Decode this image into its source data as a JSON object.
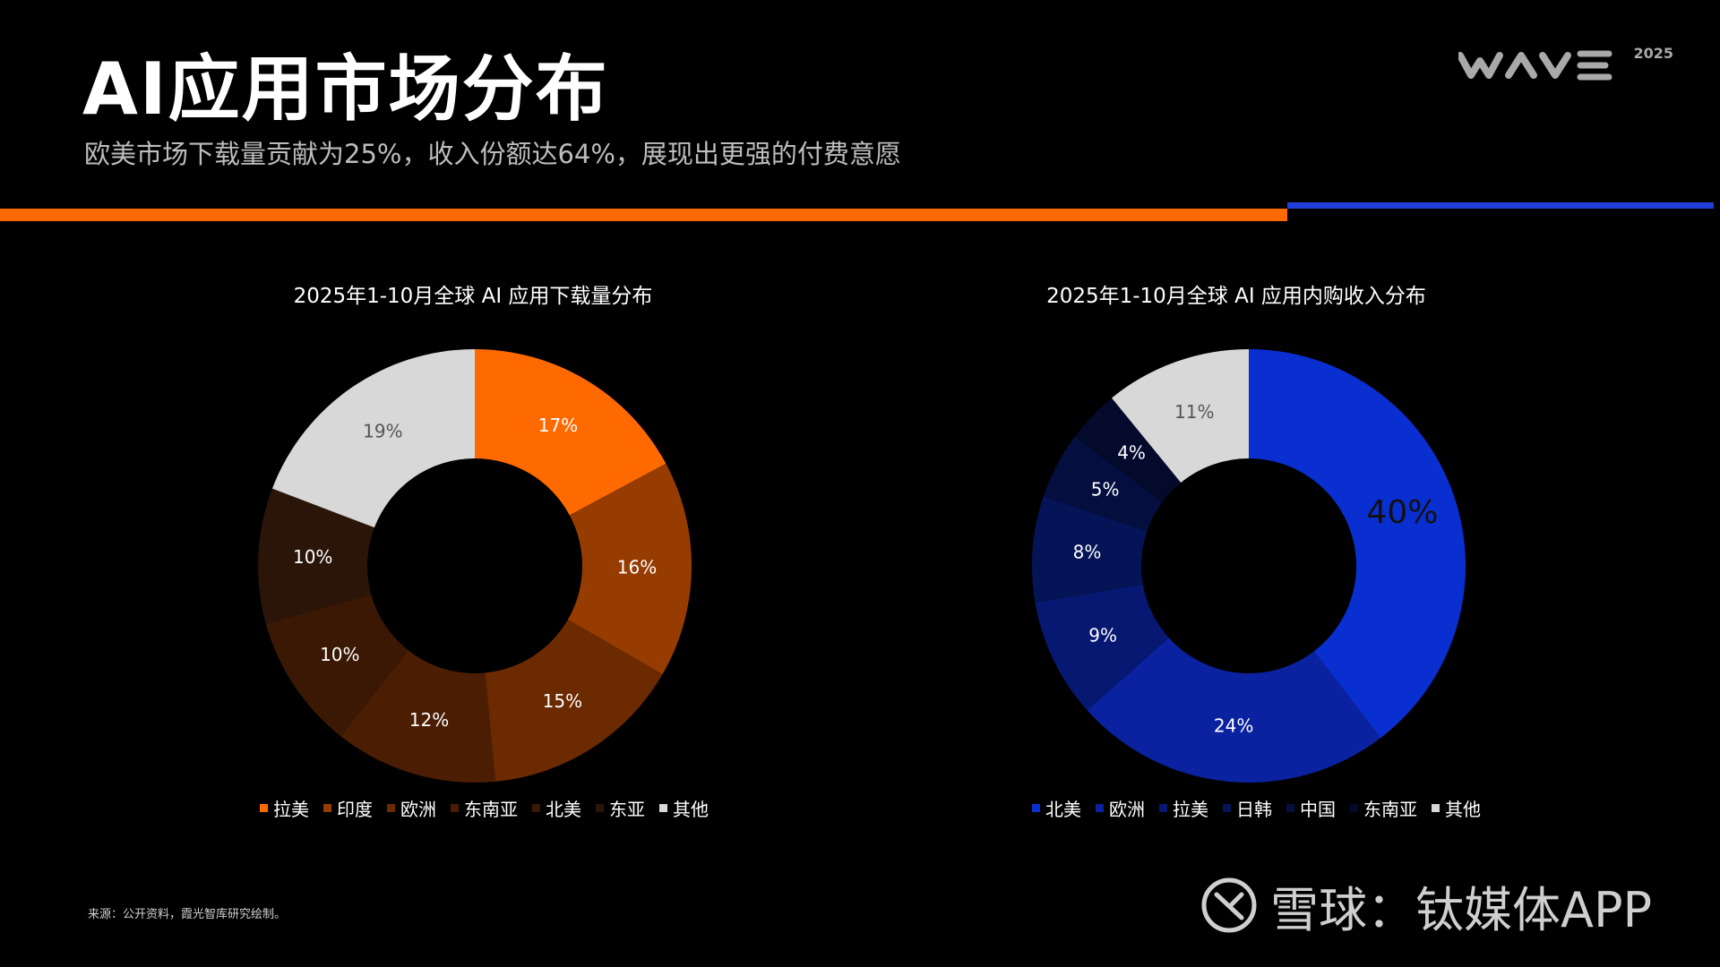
{
  "header": {
    "title": "AI应用市场分布",
    "subtitle": "欧美市场下载量贡献为25%，收入份额达64%，展现出更强的付费意愿",
    "logo_year": "2025"
  },
  "colors": {
    "accent_orange": "#ff6a00",
    "accent_blue": "#1f3fd6"
  },
  "chart_data": [
    {
      "type": "pie",
      "title": "2025年1-10月全球 AI 应用下载量分布",
      "categories": [
        "拉美",
        "印度",
        "欧洲",
        "东南亚",
        "北美",
        "东亚",
        "其他"
      ],
      "values": [
        17,
        16,
        15,
        12,
        10,
        10,
        19
      ],
      "labels": [
        "17%",
        "16%",
        "15%",
        "12%",
        "10%",
        "10%",
        "19%"
      ],
      "colors": [
        "#ff6a00",
        "#973c00",
        "#6b2a00",
        "#4b1e04",
        "#3a1804",
        "#2b1508",
        "#d8d8d8"
      ],
      "label_colors": [
        "#ffffff",
        "#ffffff",
        "#ffffff",
        "#ffffff",
        "#ffffff",
        "#ffffff",
        "#555555"
      ],
      "donut": true,
      "legend_position": "bottom"
    },
    {
      "type": "pie",
      "title": "2025年1-10月全球 AI 应用内购收入分布",
      "categories": [
        "北美",
        "欧洲",
        "拉美",
        "日韩",
        "中国",
        "东南亚",
        "其他"
      ],
      "values": [
        40,
        24,
        9,
        8,
        5,
        4,
        11
      ],
      "labels": [
        "40%",
        "24%",
        "9%",
        "8%",
        "5%",
        "4%",
        "11%"
      ],
      "colors": [
        "#0a2fd0",
        "#0a22a0",
        "#061871",
        "#051457",
        "#040f3f",
        "#030a2b",
        "#d8d8d8"
      ],
      "label_colors": [
        "#111111",
        "#ffffff",
        "#ffffff",
        "#ffffff",
        "#ffffff",
        "#ffffff",
        "#555555"
      ],
      "donut": true,
      "legend_position": "bottom"
    }
  ],
  "footer": {
    "source": "来源：公开资料，霞光智库研究绘制。",
    "watermark": "雪球：钛媒体APP"
  }
}
